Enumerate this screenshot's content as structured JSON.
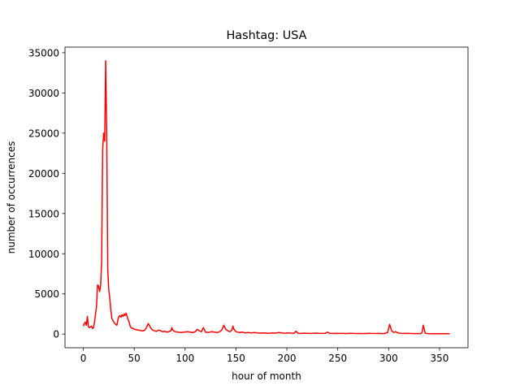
{
  "chart_data": {
    "type": "line",
    "title": "Hashtag: USA",
    "xlabel": "hour of month",
    "ylabel": "number of occurrences",
    "xlim": [
      -18,
      378
    ],
    "ylim": [
      -1700,
      35700
    ],
    "xticks": [
      0,
      50,
      100,
      150,
      200,
      250,
      300,
      350
    ],
    "yticks": [
      0,
      5000,
      10000,
      15000,
      20000,
      25000,
      30000,
      35000
    ],
    "grid": false,
    "series": [
      {
        "color": "#ff0000",
        "x": [
          0,
          1,
          2,
          3,
          4,
          5,
          6,
          7,
          8,
          9,
          10,
          11,
          12,
          13,
          14,
          15,
          16,
          17,
          18,
          19,
          20,
          21,
          22,
          23,
          24,
          25,
          26,
          27,
          28,
          29,
          30,
          31,
          32,
          33,
          34,
          35,
          36,
          37,
          38,
          39,
          40,
          41,
          42,
          43,
          44,
          45,
          46,
          47,
          48,
          49,
          50,
          52,
          54,
          56,
          58,
          60,
          62,
          63,
          64,
          66,
          68,
          70,
          72,
          74,
          76,
          78,
          80,
          82,
          84,
          86,
          87,
          88,
          90,
          93,
          96,
          99,
          102,
          105,
          108,
          110,
          112,
          114,
          116,
          118,
          120,
          123,
          126,
          129,
          132,
          134,
          136,
          138,
          140,
          142,
          144,
          146,
          147,
          148,
          150,
          153,
          156,
          159,
          162,
          165,
          168,
          171,
          174,
          177,
          180,
          183,
          186,
          189,
          192,
          195,
          198,
          201,
          204,
          207,
          209,
          211,
          214,
          217,
          220,
          223,
          226,
          229,
          232,
          235,
          238,
          240,
          242,
          245,
          248,
          251,
          254,
          257,
          260,
          263,
          266,
          269,
          272,
          275,
          278,
          281,
          284,
          287,
          290,
          293,
          296,
          299,
          301,
          302,
          303,
          305,
          307,
          309,
          312,
          315,
          318,
          321,
          324,
          327,
          330,
          332,
          333,
          334,
          336,
          339,
          342,
          345,
          348,
          351,
          354,
          357,
          360
        ],
        "y": [
          1000,
          1300,
          1500,
          1100,
          2200,
          900,
          800,
          900,
          1000,
          700,
          800,
          1500,
          2500,
          3500,
          6100,
          6000,
          5300,
          6000,
          9000,
          23000,
          25000,
          24000,
          34000,
          25000,
          8000,
          5500,
          4500,
          3000,
          2000,
          1700,
          1500,
          1300,
          1200,
          1100,
          1800,
          2200,
          2300,
          2100,
          2400,
          2200,
          2500,
          2300,
          2600,
          2200,
          1800,
          1500,
          1000,
          800,
          700,
          700,
          600,
          550,
          500,
          450,
          400,
          450,
          800,
          1100,
          1300,
          800,
          500,
          400,
          350,
          500,
          400,
          300,
          350,
          250,
          300,
          400,
          800,
          500,
          300,
          250,
          200,
          250,
          300,
          250,
          200,
          300,
          600,
          400,
          300,
          800,
          250,
          200,
          300,
          250,
          200,
          300,
          500,
          1100,
          600,
          400,
          300,
          500,
          1000,
          600,
          300,
          200,
          250,
          150,
          200,
          150,
          200,
          150,
          120,
          150,
          120,
          100,
          150,
          120,
          200,
          150,
          100,
          150,
          120,
          100,
          350,
          100,
          80,
          120,
          100,
          80,
          100,
          120,
          90,
          80,
          100,
          250,
          100,
          80,
          100,
          80,
          90,
          70,
          80,
          100,
          80,
          70,
          80,
          60,
          80,
          100,
          80,
          70,
          90,
          60,
          80,
          200,
          1200,
          800,
          400,
          200,
          300,
          150,
          100,
          80,
          100,
          80,
          70,
          60,
          70,
          60,
          250,
          1100,
          100,
          60,
          50,
          60,
          50,
          60,
          50,
          60,
          50
        ]
      }
    ]
  }
}
